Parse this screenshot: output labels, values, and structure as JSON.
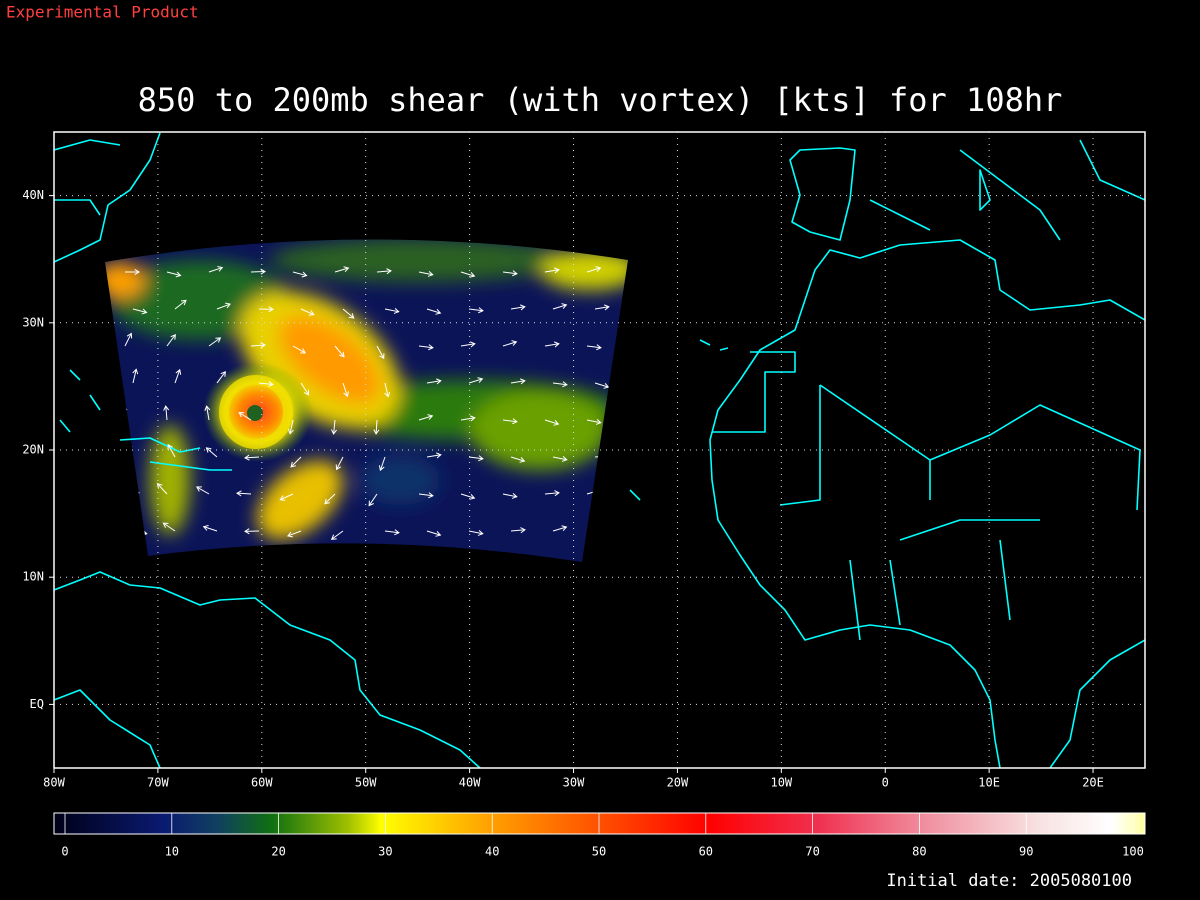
{
  "header": {
    "label": "Experimental Product"
  },
  "map": {
    "title": "850 to 200mb shear (with vortex) [kts] for 108hr",
    "lonlim": [
      -80,
      25
    ],
    "latlim": [
      -5,
      45
    ],
    "lon_ticks": [
      {
        "value": -80,
        "label": "80W"
      },
      {
        "value": -70,
        "label": "70W"
      },
      {
        "value": -60,
        "label": "60W"
      },
      {
        "value": -50,
        "label": "50W"
      },
      {
        "value": -40,
        "label": "40W"
      },
      {
        "value": -30,
        "label": "30W"
      },
      {
        "value": -20,
        "label": "20W"
      },
      {
        "value": -10,
        "label": "10W"
      },
      0,
      {
        "value": 10,
        "label": "10E"
      },
      {
        "value": 20,
        "label": "20E"
      }
    ],
    "lat_ticks": [
      {
        "value": 0,
        "label": "EQ"
      },
      {
        "value": 10,
        "label": "10N"
      },
      {
        "value": 20,
        "label": "20N"
      },
      {
        "value": 30,
        "label": "30N"
      },
      {
        "value": 40,
        "label": "40N"
      }
    ],
    "grid": true,
    "coast_color": "#00ffff"
  },
  "colorbar": {
    "range": [
      0,
      100
    ],
    "ticks": [
      0,
      10,
      20,
      30,
      40,
      50,
      60,
      70,
      80,
      90,
      100
    ]
  },
  "footer": {
    "initial_date": "Initial date: 2005080100"
  }
}
